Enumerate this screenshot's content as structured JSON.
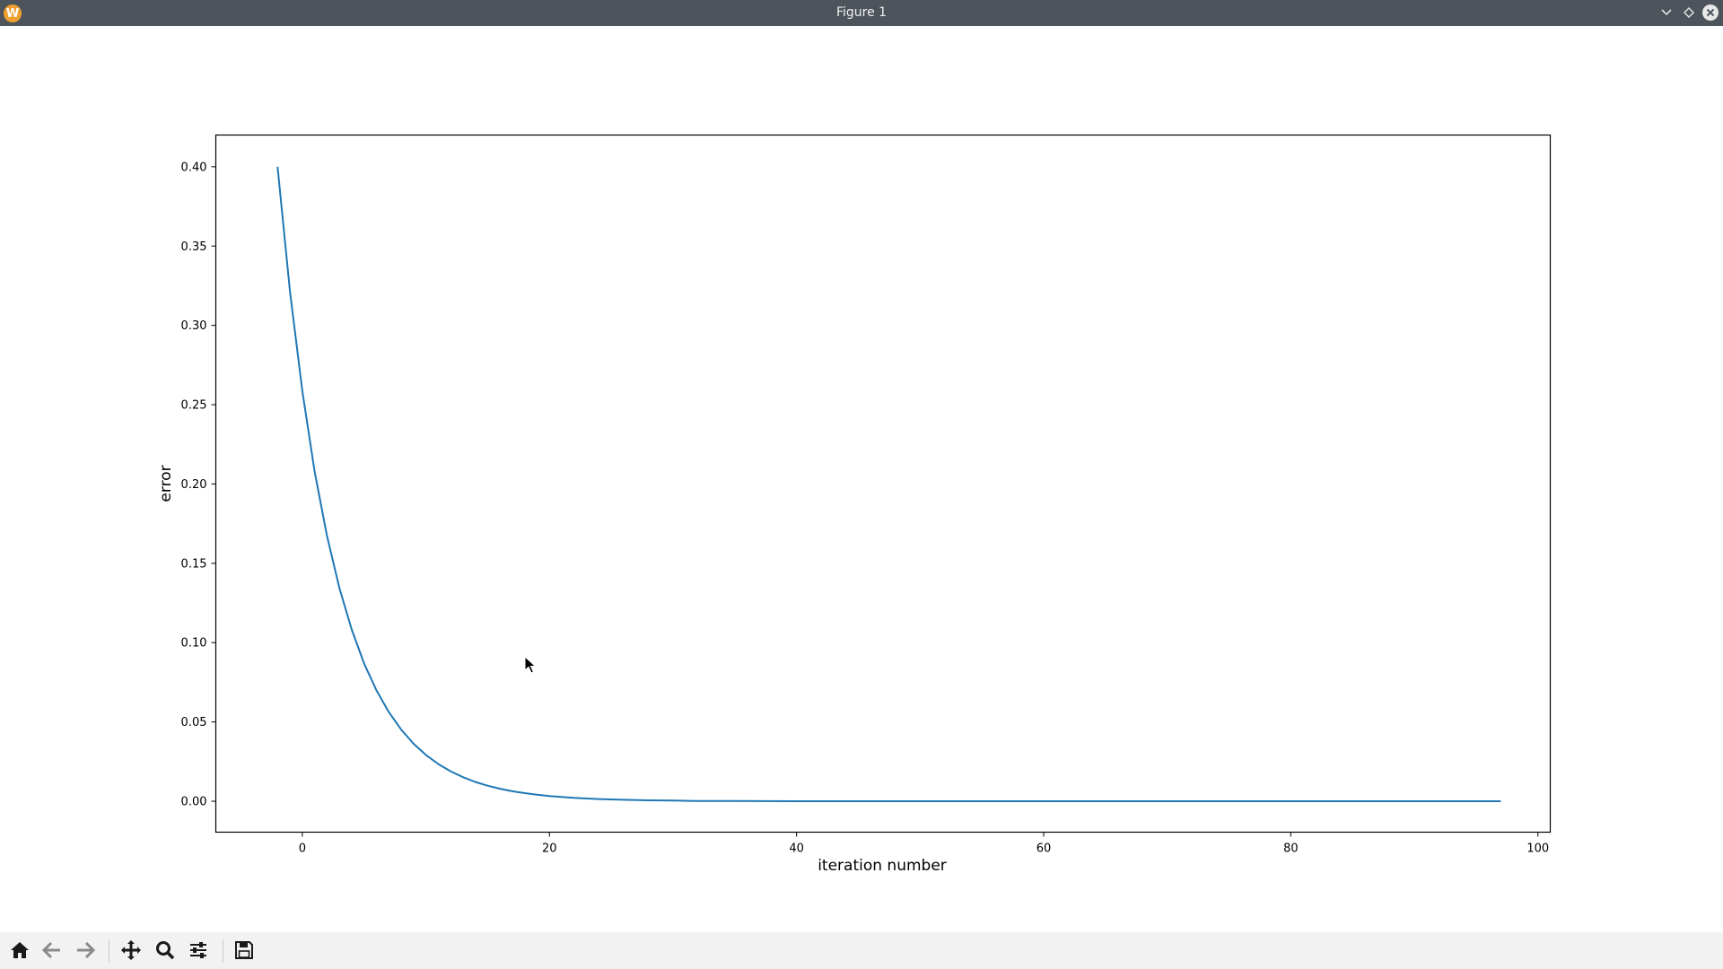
{
  "window": {
    "title": "Figure 1",
    "app_icon_glyph": "W",
    "controls": [
      "minimize-icon",
      "maximize-icon",
      "close-icon"
    ]
  },
  "chart_data": {
    "type": "line",
    "title": "",
    "xlabel": "iteration number",
    "ylabel": "error",
    "xlim": [
      -7,
      101
    ],
    "ylim": [
      -0.0195,
      0.42
    ],
    "x_ticks": [
      0,
      20,
      40,
      60,
      80,
      100
    ],
    "y_ticks": [
      0.0,
      0.05,
      0.1,
      0.15,
      0.2,
      0.25,
      0.3,
      0.35,
      0.4
    ],
    "x_tick_labels": [
      "0",
      "20",
      "40",
      "60",
      "80",
      "100"
    ],
    "y_tick_labels": [
      "0.00",
      "0.05",
      "0.10",
      "0.15",
      "0.20",
      "0.25",
      "0.30",
      "0.35",
      "0.40"
    ],
    "grid": false,
    "legend": null,
    "series": [
      {
        "color": "#1f77b4",
        "x": [
          -2,
          -1,
          0,
          1,
          2,
          3,
          4,
          5,
          6,
          7,
          8,
          9,
          10,
          11,
          12,
          13,
          14,
          15,
          16,
          17,
          18,
          19,
          20,
          22,
          24,
          26,
          28,
          30,
          32,
          35,
          40,
          45,
          50,
          60,
          70,
          80,
          90,
          97
        ],
        "y": [
          0.4,
          0.3216,
          0.2586,
          0.2079,
          0.1672,
          0.1344,
          0.1081,
          0.0869,
          0.0699,
          0.0562,
          0.0452,
          0.0363,
          0.0292,
          0.0235,
          0.0189,
          0.0152,
          0.0122,
          0.0098,
          0.0079,
          0.0063,
          0.0051,
          0.0041,
          0.0033,
          0.0021,
          0.0014,
          0.0009,
          0.0006,
          0.0004,
          0.0002,
          0.0001,
          4e-05,
          1e-05,
          0.0,
          0.0,
          0.0,
          0.0,
          0.0,
          0.0
        ]
      }
    ]
  },
  "toolbar": {
    "buttons": [
      "home-icon",
      "back-icon",
      "forward-icon",
      "pan-icon",
      "zoom-icon",
      "configure-subplots-icon",
      "save-icon"
    ]
  }
}
